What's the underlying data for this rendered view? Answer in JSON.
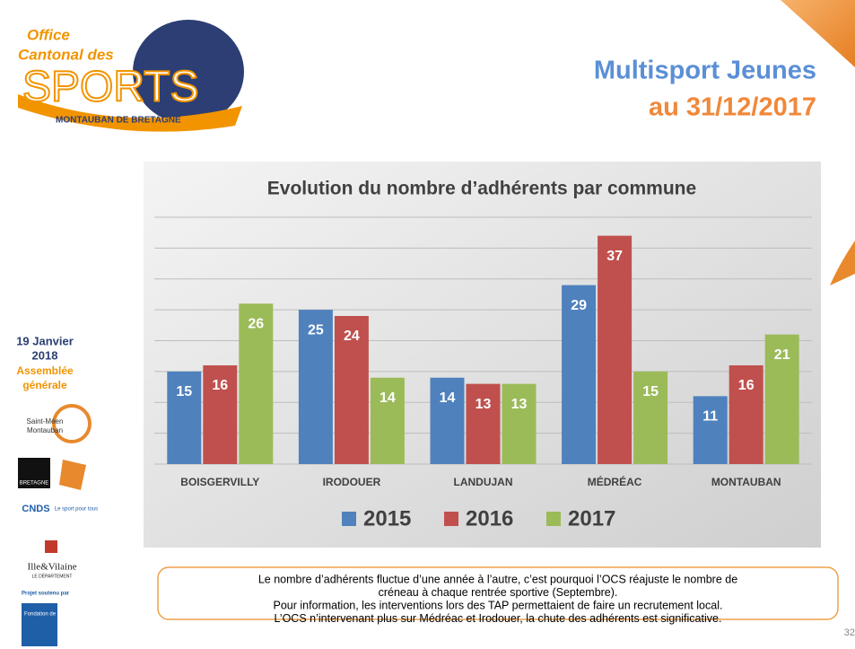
{
  "header": {
    "title": "Multisport Jeunes",
    "subtitle": "au 31/12/2017"
  },
  "logo": {
    "line1": "Office",
    "line2": "Cantonal des",
    "line3": "SPORTS",
    "line4": "MONTAUBAN DE BRETAGNE"
  },
  "sidebar": {
    "date": [
      "19 Janvier",
      "2018"
    ],
    "event": [
      "Assemblée",
      "générale"
    ],
    "partners": [
      "Saint-Méen",
      "Montauban",
      "BRETAGNE",
      "CNDS",
      "Le sport pour tous",
      "Ille&Vilaine",
      "LE DÉPARTEMENT",
      "Projet soutenu par",
      "Fondation de France"
    ]
  },
  "chart_data": {
    "type": "bar",
    "title": "Evolution du nombre d’adhérents par commune",
    "categories": [
      "BOISGERVILLY",
      "IRODOUER",
      "LANDUJAN",
      "MÉDRÉAC",
      "MONTAUBAN"
    ],
    "series": [
      {
        "name": "2015",
        "color": "#4f81bd",
        "values": [
          15,
          25,
          14,
          29,
          11
        ]
      },
      {
        "name": "2016",
        "color": "#c0504d",
        "values": [
          16,
          24,
          13,
          37,
          16
        ]
      },
      {
        "name": "2017",
        "color": "#9bbb59",
        "values": [
          26,
          14,
          13,
          15,
          21
        ]
      }
    ],
    "ylim": [
      0,
      40
    ],
    "yticks": [
      0,
      5,
      10,
      15,
      20,
      25,
      30,
      35,
      40
    ],
    "grid": true,
    "legend": "bottom"
  },
  "caption": [
    "Le nombre d’adhérents fluctue d’une année à l’autre, c’est pourquoi l’OCS réajuste le nombre de",
    "créneau à chaque rentrée sportive (Septembre).",
    "Pour information, les interventions lors des TAP permettaient de faire un recrutement local.",
    "L’OCS n’intervenant plus sur Médréac et Irodouer, la chute des adhérents est significative."
  ],
  "page_number": "32"
}
